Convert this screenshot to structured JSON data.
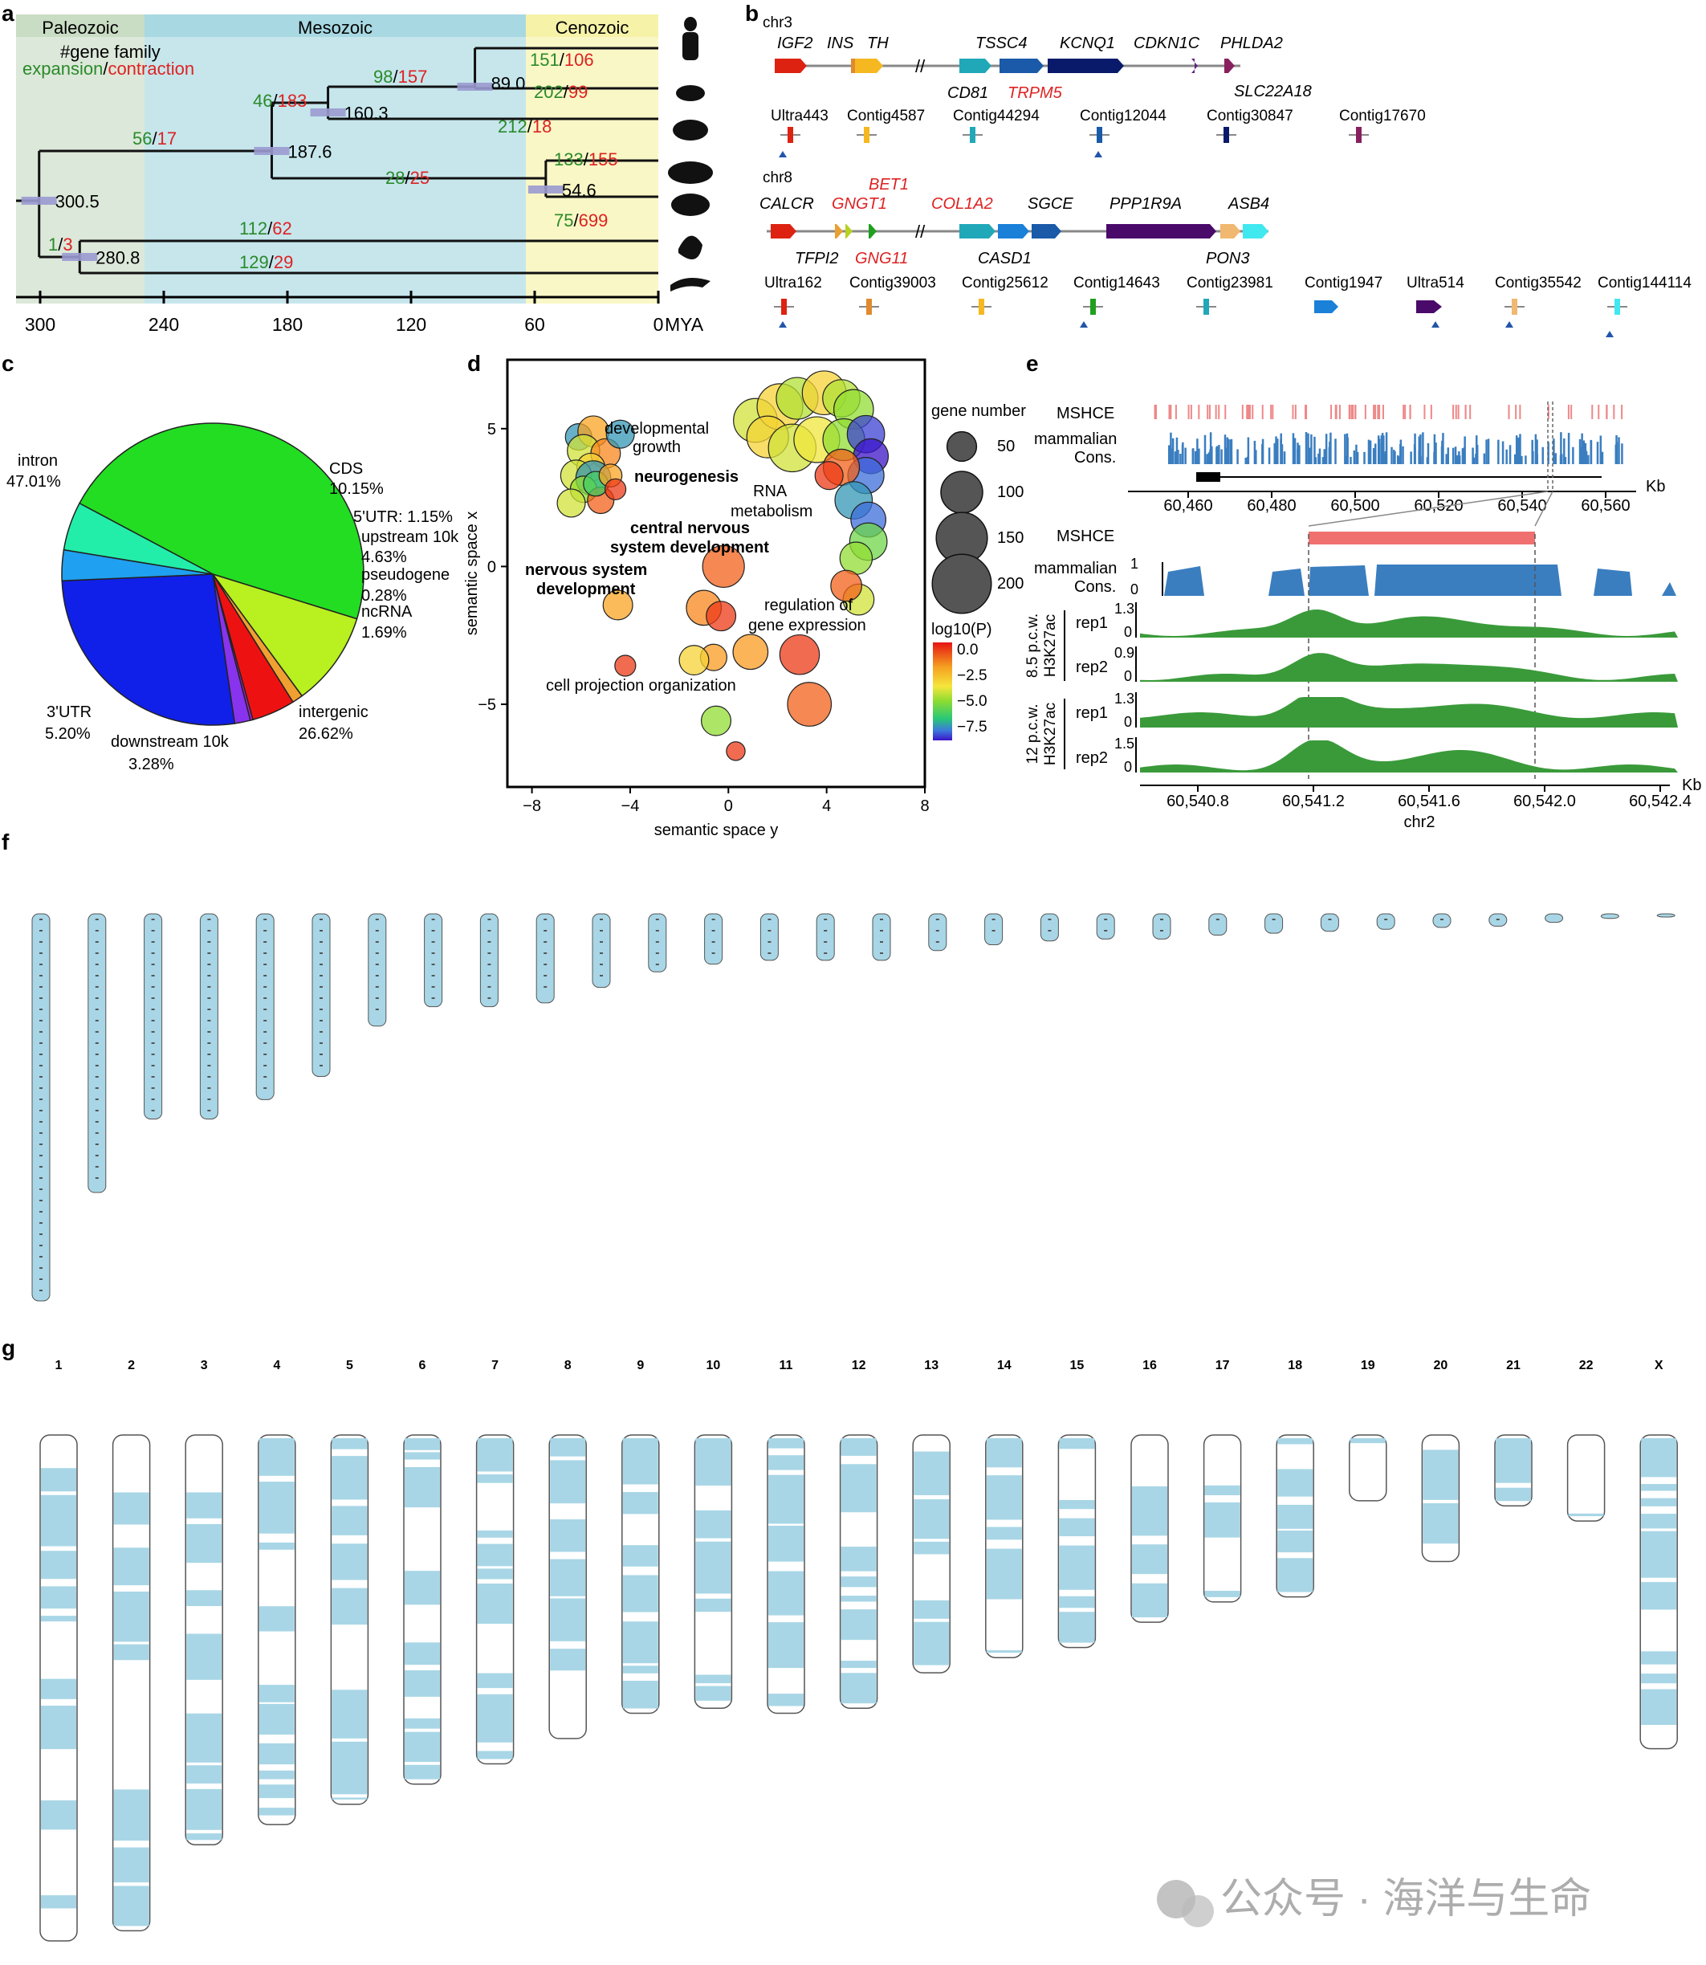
{
  "panels": {
    "a": "a",
    "b": "b",
    "c": "c",
    "d": "d",
    "e": "e",
    "f": "f",
    "g": "g"
  },
  "panel_a": {
    "eras": [
      {
        "label": "Paleozoic",
        "color": "#c9dcc4"
      },
      {
        "label": "Mesozoic",
        "color": "#a8d8e2"
      },
      {
        "label": "Cenozoic",
        "color": "#f6f2a8"
      }
    ],
    "legend": {
      "line1": "#gene family",
      "expansion": "expansion",
      "slash": "/",
      "contraction": "contraction"
    },
    "nodes": [
      "300.5",
      "280.8",
      "187.6",
      "160.3",
      "89.0",
      "54.6"
    ],
    "counts": [
      {
        "id": "c0",
        "g": "151",
        "r": "106"
      },
      {
        "id": "c1",
        "g": "202",
        "r": "99"
      },
      {
        "id": "c2",
        "g": "98",
        "r": "157"
      },
      {
        "id": "c3",
        "g": "212",
        "r": "18"
      },
      {
        "id": "c4",
        "g": "46",
        "r": "183"
      },
      {
        "id": "c5",
        "g": "56",
        "r": "17"
      },
      {
        "id": "c6",
        "g": "28",
        "r": "25"
      },
      {
        "id": "c7",
        "g": "133",
        "r": "155"
      },
      {
        "id": "c8",
        "g": "75",
        "r": "699"
      },
      {
        "id": "c9",
        "g": "112",
        "r": "62"
      },
      {
        "id": "c10",
        "g": "1",
        "r": "3"
      },
      {
        "id": "c11",
        "g": "129",
        "r": "29"
      }
    ],
    "axis_ticks": [
      "300",
      "240",
      "180",
      "120",
      "60",
      "0"
    ],
    "axis_unit": "MYA",
    "silhouettes": [
      "human-icon",
      "mouse-icon",
      "mole-icon",
      "platypus-icon",
      "echidna-icon",
      "chicken-icon",
      "lizard-icon"
    ]
  },
  "panel_b": {
    "chr3": {
      "label": "chr3",
      "genes_top": [
        "IGF2",
        "INS",
        "TH",
        "TSSC4",
        "KCNQ1",
        "CDKN1C",
        "PHLDA2"
      ],
      "genes_bottom": [
        {
          "t": "CD81",
          "red": false
        },
        {
          "t": "TRPM5",
          "red": true
        },
        {
          "t": "SLC22A18",
          "red": false
        }
      ],
      "contigs": [
        "Ultra443",
        "Contig4587",
        "Contig44294",
        "Contig12044",
        "Contig30847",
        "Contig17670"
      ]
    },
    "chr8": {
      "label": "chr8",
      "genes_top": [
        {
          "t": "BET1",
          "red": true
        },
        {
          "t": "CALCR",
          "red": false
        },
        {
          "t": "GNGT1",
          "red": true
        },
        {
          "t": "COL1A2",
          "red": true
        },
        {
          "t": "SGCE",
          "red": false
        },
        {
          "t": "PPP1R9A",
          "red": false
        },
        {
          "t": "ASB4",
          "red": false
        }
      ],
      "genes_bottom": [
        {
          "t": "TFPI2",
          "red": false
        },
        {
          "t": "GNG11",
          "red": true
        },
        {
          "t": "CASD1",
          "red": false
        },
        {
          "t": "PON3",
          "red": false
        }
      ],
      "contigs": [
        "Ultra162",
        "Contig39003",
        "Contig25612",
        "Contig14643",
        "Contig23981",
        "Contig1947",
        "Ultra514",
        "Contig35542",
        "Contig144114"
      ]
    }
  },
  "panel_c": {
    "chart_data": {
      "type": "pie",
      "slices": [
        {
          "label": "intron",
          "value": 47.01,
          "pct": "47.01%",
          "color": "#22dd22"
        },
        {
          "label": "CDS",
          "value": 10.15,
          "pct": "10.15%",
          "color": "#b8f020"
        },
        {
          "label": "5'UTR: 1.15%",
          "value": 1.15,
          "pct": "",
          "color": "#f0a030"
        },
        {
          "label": "upstream 10k",
          "value": 4.63,
          "pct": "4.63%",
          "color": "#ee1111"
        },
        {
          "label": "pseudogene",
          "value": 0.28,
          "pct": "0.28%",
          "color": "#aa22cc"
        },
        {
          "label": "ncRNA",
          "value": 1.69,
          "pct": "1.69%",
          "color": "#8833ee"
        },
        {
          "label": "intergenic",
          "value": 26.62,
          "pct": "26.62%",
          "color": "#1020e8"
        },
        {
          "label": "downstream 10k",
          "value": 3.28,
          "pct": "3.28%",
          "color": "#20a0f0"
        },
        {
          "label": "3'UTR",
          "value": 5.2,
          "pct": "5.20%",
          "color": "#22eeaa"
        }
      ]
    }
  },
  "panel_d": {
    "chart_data": {
      "type": "scatter",
      "xlabel": "semantic space y",
      "ylabel": "semantic space x",
      "xlim": [
        -9,
        8
      ],
      "ylim": [
        -8,
        7.5
      ],
      "xticks": [
        "-8",
        "-4",
        "0",
        "4",
        "8"
      ],
      "yticks": [
        "5",
        "0",
        "-5"
      ],
      "labels": [
        "developmental growth",
        "neurogenesis",
        "RNA metabolism",
        "central nervous system development",
        "nervous system development",
        "regulation of gene expression",
        "cell projection organization"
      ],
      "points": [
        [
          -6.1,
          4.7,
          40,
          -7
        ],
        [
          -5.5,
          4.9,
          55,
          -2
        ],
        [
          -5.9,
          4.2,
          60,
          -4
        ],
        [
          -5.0,
          4.1,
          50,
          -1.5
        ],
        [
          -4.4,
          4.8,
          45,
          -7
        ],
        [
          -5.6,
          3.6,
          45,
          -3
        ],
        [
          -6.2,
          3.3,
          55,
          -4
        ],
        [
          -5.5,
          3.2,
          70,
          -7
        ],
        [
          -5.9,
          2.8,
          40,
          -5
        ],
        [
          -5.2,
          2.4,
          40,
          -1
        ],
        [
          -5.4,
          3.0,
          35,
          -6
        ],
        [
          -4.8,
          3.3,
          30,
          -2
        ],
        [
          -6.4,
          2.3,
          45,
          -4
        ],
        [
          -4.6,
          2.8,
          25,
          -0.5
        ],
        [
          -4.5,
          -1.4,
          50,
          -2
        ],
        [
          -4.2,
          -3.6,
          25,
          -0.5
        ],
        [
          1.1,
          5.3,
          110,
          -4
        ],
        [
          2.1,
          5.8,
          120,
          -3
        ],
        [
          2.8,
          6.1,
          100,
          -4.5
        ],
        [
          3.9,
          6.3,
          110,
          -3
        ],
        [
          4.6,
          6.1,
          80,
          -4.5
        ],
        [
          5.1,
          5.7,
          90,
          -5
        ],
        [
          1.6,
          4.7,
          100,
          -3
        ],
        [
          2.6,
          4.3,
          130,
          -4
        ],
        [
          3.6,
          4.6,
          120,
          -3.5
        ],
        [
          4.7,
          4.6,
          100,
          -5
        ],
        [
          5.6,
          4.8,
          80,
          -8
        ],
        [
          5.8,
          4.0,
          70,
          -8.5
        ],
        [
          5.6,
          3.3,
          75,
          -7.5
        ],
        [
          4.6,
          3.6,
          75,
          -1
        ],
        [
          4.1,
          3.3,
          45,
          -0.5
        ],
        [
          5.1,
          2.4,
          80,
          -7
        ],
        [
          5.7,
          1.7,
          70,
          -7.5
        ],
        [
          5.7,
          0.9,
          80,
          -5.5
        ],
        [
          5.2,
          0.3,
          60,
          -5
        ],
        [
          5.3,
          -1.2,
          55,
          -4
        ],
        [
          -0.2,
          0.0,
          100,
          -1
        ],
        [
          -1.0,
          -1.5,
          70,
          -1.5
        ],
        [
          -0.3,
          -1.8,
          50,
          -0.5
        ],
        [
          0.9,
          -3.1,
          70,
          -1.8
        ],
        [
          2.9,
          -3.2,
          90,
          -0.5
        ],
        [
          3.3,
          -5.0,
          110,
          -1
        ],
        [
          -0.6,
          -3.3,
          40,
          -1.8
        ],
        [
          -1.4,
          -3.4,
          50,
          -3
        ],
        [
          -0.5,
          -5.6,
          50,
          -5
        ],
        [
          0.3,
          -6.7,
          20,
          -0.5
        ],
        [
          4.8,
          -0.7,
          55,
          -1
        ]
      ],
      "size_legend_title": "gene number",
      "size_legend": [
        "50",
        "100",
        "150",
        "200"
      ],
      "color_legend_title": "log10(P)",
      "color_ticks": [
        "0.0",
        "−2.5",
        "−5.0",
        "−7.5"
      ]
    }
  },
  "panel_e": {
    "tracks_top": [
      "MSHCE",
      "mammalian",
      "Cons."
    ],
    "top_axis": [
      "60,460",
      "60,480",
      "60,500",
      "60,520",
      "60,540",
      "60,560"
    ],
    "unit": "Kb",
    "tracks_bottom": {
      "mshce": "MSHCE",
      "cons1": "mammalian",
      "cons2": "Cons.",
      "scale1": "1",
      "scale0": "0"
    },
    "chip": [
      {
        "group": "8.5 p.c.w.",
        "mark": "H3K27ac",
        "rep": "rep1",
        "max": "1.3"
      },
      {
        "group": "8.5 p.c.w.",
        "mark": "H3K27ac",
        "rep": "rep2",
        "max": "0.9"
      },
      {
        "group": "12 p.c.w.",
        "mark": "H3K27ac",
        "rep": "rep1",
        "max": "1.3"
      },
      {
        "group": "12 p.c.w.",
        "mark": "H3K27ac",
        "rep": "rep2",
        "max": "1.5"
      }
    ],
    "bottom_axis": [
      "60,540.8",
      "60,541.2",
      "60,541.6",
      "60,542.0",
      "60,542.4"
    ],
    "chrom": "chr2"
  },
  "panel_f": {
    "lengths": [
      1,
      0.72,
      0.53,
      0.53,
      0.48,
      0.42,
      0.29,
      0.24,
      0.24,
      0.23,
      0.19,
      0.15,
      0.13,
      0.12,
      0.12,
      0.12,
      0.095,
      0.08,
      0.07,
      0.065,
      0.065,
      0.055,
      0.05,
      0.045,
      0.04,
      0.035,
      0.032,
      0.022,
      0.012,
      0.004
    ]
  },
  "panel_g": {
    "chroms": [
      "1",
      "2",
      "3",
      "4",
      "5",
      "6",
      "7",
      "8",
      "9",
      "10",
      "11",
      "12",
      "13",
      "14",
      "15",
      "16",
      "17",
      "18",
      "19",
      "20",
      "21",
      "22",
      "X"
    ],
    "lengths": [
      1,
      0.98,
      0.81,
      0.77,
      0.73,
      0.69,
      0.65,
      0.6,
      0.55,
      0.54,
      0.55,
      0.54,
      0.47,
      0.44,
      0.42,
      0.37,
      0.33,
      0.32,
      0.13,
      0.25,
      0.14,
      0.17,
      0.62
    ]
  },
  "watermark": "公众号 · 海洋与生命"
}
